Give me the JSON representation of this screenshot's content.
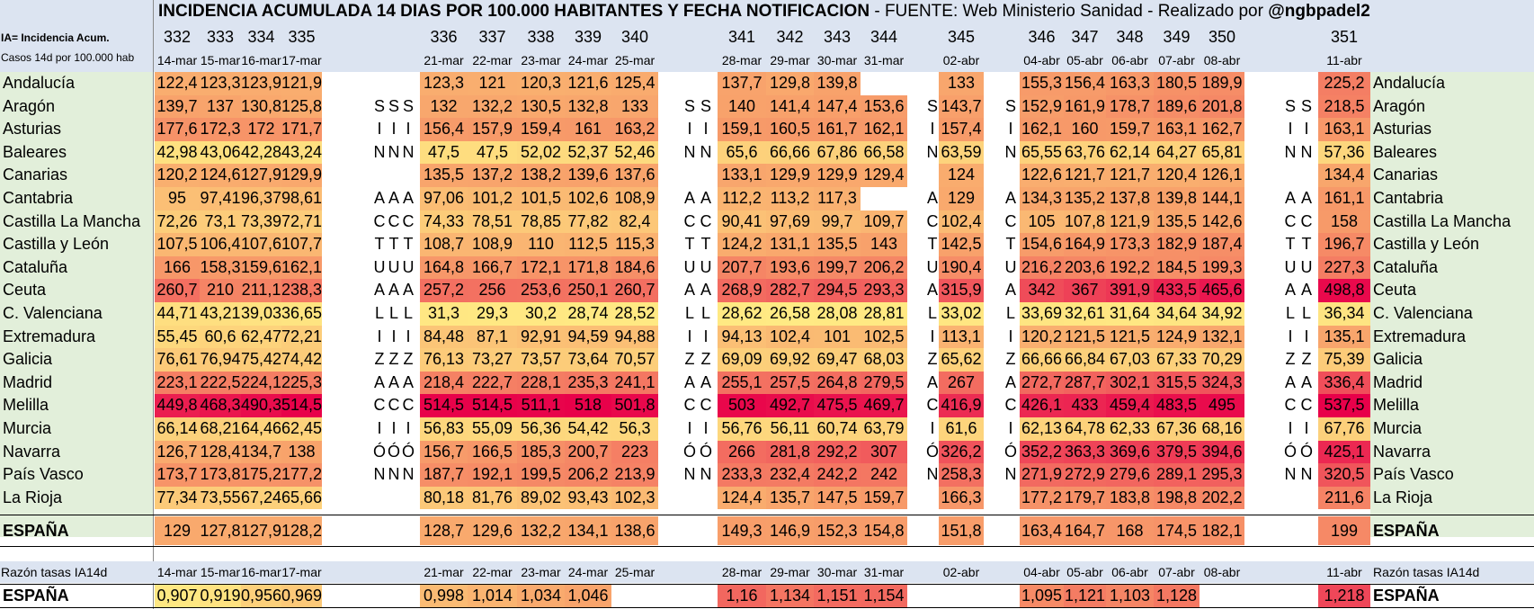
{
  "title": {
    "main": "INCIDENCIA ACUMULADA 14 DIAS POR 100.000 HABITANTES Y FECHA NOTIFICACION",
    "source": " - FUENTE: Web Ministerio Sanidad - Realizado por ",
    "author": "@ngbpadel2"
  },
  "header_labels": {
    "ia_label": "IA= Incidencia Acum.",
    "casos_label": "Casos 14d  por 100.000 hab",
    "ratio_label": "Razón tasas IA14d"
  },
  "colors": {
    "header_bg": "#dce4f1",
    "name_bg": "#e2efda",
    "scale_low": "#ffeb84",
    "scale_mid": "#f8a26b",
    "scale_high": "#e8004a"
  },
  "columns": [
    {
      "num": "332",
      "date": "14-mar"
    },
    {
      "num": "333",
      "date": "15-mar"
    },
    {
      "num": "334",
      "date": "16-mar"
    },
    {
      "num": "335",
      "date": "17-mar"
    },
    {
      "num": "336",
      "date": "21-mar"
    },
    {
      "num": "337",
      "date": "22-mar"
    },
    {
      "num": "338",
      "date": "23-mar"
    },
    {
      "num": "339",
      "date": "24-mar"
    },
    {
      "num": "340",
      "date": "25-mar"
    },
    {
      "num": "341",
      "date": "28-mar"
    },
    {
      "num": "342",
      "date": "29-mar"
    },
    {
      "num": "343",
      "date": "30-mar"
    },
    {
      "num": "344",
      "date": "31-mar"
    },
    {
      "num": "345",
      "date": "02-abr"
    },
    {
      "num": "346",
      "date": "04-abr"
    },
    {
      "num": "347",
      "date": "05-abr"
    },
    {
      "num": "348",
      "date": "06-abr"
    },
    {
      "num": "349",
      "date": "07-abr"
    },
    {
      "num": "350",
      "date": "08-abr"
    },
    {
      "num": "351",
      "date": "11-abr"
    }
  ],
  "rows": [
    {
      "name": "Andalucía",
      "letter": "",
      "values": [
        "122,4",
        "123,3",
        "123,9",
        "121,9",
        "123,3",
        "121",
        "120,3",
        "121,6",
        "125,4",
        "137,7",
        "129,8",
        "139,8",
        "",
        "133",
        "155,3",
        "156,4",
        "163,3",
        "180,5",
        "189,9",
        "225,2"
      ]
    },
    {
      "name": "Aragón",
      "letter": "S",
      "values": [
        "139,7",
        "137",
        "130,8",
        "125,8",
        "132",
        "132,2",
        "130,5",
        "132,8",
        "133",
        "140",
        "141,4",
        "147,4",
        "153,6",
        "143,7",
        "152,9",
        "161,9",
        "178,7",
        "189,6",
        "201,8",
        "218,5"
      ]
    },
    {
      "name": "Asturias",
      "letter": "I",
      "values": [
        "177,6",
        "172,3",
        "172",
        "171,7",
        "156,4",
        "157,9",
        "159,4",
        "161",
        "163,2",
        "159,1",
        "160,5",
        "161,7",
        "162,1",
        "157,4",
        "162,1",
        "160",
        "159,7",
        "163,1",
        "162,7",
        "163,1"
      ]
    },
    {
      "name": "Baleares",
      "letter": "N",
      "values": [
        "42,98",
        "43,06",
        "42,28",
        "43,24",
        "47,5",
        "47,5",
        "52,02",
        "52,37",
        "52,46",
        "65,6",
        "66,66",
        "67,86",
        "66,58",
        "63,59",
        "65,55",
        "63,76",
        "62,14",
        "64,27",
        "65,81",
        "57,36"
      ]
    },
    {
      "name": "Canarias",
      "letter": "",
      "values": [
        "120,2",
        "124,6",
        "127,9",
        "129,9",
        "135,5",
        "137,2",
        "138,2",
        "139,6",
        "137,6",
        "133,1",
        "129,9",
        "129,9",
        "129,4",
        "124",
        "122,6",
        "121,7",
        "121,7",
        "120,4",
        "126,1",
        "134,4"
      ]
    },
    {
      "name": "Cantabria",
      "letter": "A",
      "values": [
        "95",
        "97,41",
        "96,37",
        "98,61",
        "97,06",
        "101,2",
        "101,5",
        "102,6",
        "108,9",
        "112,2",
        "113,2",
        "117,3",
        "",
        "129",
        "134,3",
        "135,2",
        "137,8",
        "139,8",
        "144,1",
        "161,1"
      ]
    },
    {
      "name": "Castilla La Mancha",
      "letter": "C",
      "values": [
        "72,26",
        "73,1",
        "73,39",
        "72,71",
        "74,33",
        "78,51",
        "78,85",
        "77,82",
        "82,4",
        "90,41",
        "97,69",
        "99,7",
        "109,7",
        "102,4",
        "105",
        "107,8",
        "121,9",
        "135,5",
        "142,6",
        "158"
      ]
    },
    {
      "name": "Castilla y León",
      "letter": "T",
      "values": [
        "107,5",
        "106,4",
        "107,6",
        "107,7",
        "108,7",
        "108,9",
        "110",
        "112,5",
        "115,3",
        "124,2",
        "131,1",
        "135,5",
        "143",
        "142,5",
        "154,6",
        "164,9",
        "173,3",
        "182,9",
        "187,4",
        "196,7"
      ]
    },
    {
      "name": "Cataluña",
      "letter": "U",
      "values": [
        "166",
        "158,3",
        "159,6",
        "162,1",
        "164,8",
        "166,7",
        "172,1",
        "171,8",
        "184,6",
        "207,7",
        "193,6",
        "199,7",
        "206,2",
        "190,4",
        "216,2",
        "203,6",
        "192,2",
        "184,5",
        "199,3",
        "227,3"
      ]
    },
    {
      "name": "Ceuta",
      "letter": "A",
      "values": [
        "260,7",
        "210",
        "211,1",
        "238,3",
        "257,2",
        "256",
        "253,6",
        "250,1",
        "260,7",
        "268,9",
        "282,7",
        "294,5",
        "293,3",
        "315,9",
        "342",
        "367",
        "391,9",
        "433,5",
        "465,6",
        "498,8"
      ]
    },
    {
      "name": "C. Valenciana",
      "letter": "L",
      "values": [
        "44,71",
        "43,21",
        "39,03",
        "36,65",
        "31,3",
        "29,3",
        "30,2",
        "28,74",
        "28,52",
        "28,62",
        "26,58",
        "28,08",
        "28,81",
        "33,02",
        "33,69",
        "32,61",
        "31,64",
        "34,64",
        "34,92",
        "36,34"
      ]
    },
    {
      "name": "Extremadura",
      "letter": "I",
      "values": [
        "55,45",
        "60,6",
        "62,47",
        "72,21",
        "84,48",
        "87,1",
        "92,91",
        "94,59",
        "94,88",
        "94,13",
        "102,4",
        "101",
        "102,5",
        "113,1",
        "120,2",
        "121,5",
        "121,5",
        "124,9",
        "132,1",
        "135,1"
      ]
    },
    {
      "name": "Galicia",
      "letter": "Z",
      "values": [
        "76,61",
        "76,94",
        "75,42",
        "74,42",
        "76,13",
        "73,27",
        "73,57",
        "73,64",
        "70,57",
        "69,09",
        "69,92",
        "69,47",
        "68,03",
        "65,62",
        "66,66",
        "66,84",
        "67,03",
        "67,33",
        "70,29",
        "75,39"
      ]
    },
    {
      "name": "Madrid",
      "letter": "A",
      "values": [
        "223,1",
        "222,5",
        "224,1",
        "225,3",
        "218,4",
        "222,7",
        "228,1",
        "235,3",
        "241,1",
        "255,1",
        "257,5",
        "264,8",
        "279,5",
        "267",
        "272,7",
        "287,7",
        "302,1",
        "315,5",
        "324,3",
        "336,4"
      ]
    },
    {
      "name": "Melilla",
      "letter": "C",
      "values": [
        "449,8",
        "468,3",
        "490,3",
        "514,5",
        "514,5",
        "514,5",
        "511,1",
        "518",
        "501,8",
        "503",
        "492,7",
        "475,5",
        "469,7",
        "416,9",
        "426,1",
        "433",
        "459,4",
        "483,5",
        "495",
        "537,5"
      ]
    },
    {
      "name": "Murcia",
      "letter": "I",
      "values": [
        "66,14",
        "68,21",
        "64,46",
        "62,45",
        "56,83",
        "55,09",
        "56,36",
        "54,42",
        "56,3",
        "56,76",
        "56,11",
        "60,74",
        "63,79",
        "61,6",
        "62,13",
        "64,78",
        "62,33",
        "67,36",
        "68,16",
        "67,76"
      ]
    },
    {
      "name": "Navarra",
      "letter": "Ó",
      "values": [
        "126,7",
        "128,4",
        "134,7",
        "138",
        "156,7",
        "166,5",
        "185,3",
        "200,7",
        "223",
        "266",
        "281,8",
        "292,2",
        "307",
        "326,2",
        "352,2",
        "363,3",
        "369,6",
        "379,5",
        "394,6",
        "425,1"
      ]
    },
    {
      "name": "País Vasco",
      "letter": "N",
      "values": [
        "173,7",
        "173,8",
        "175,2",
        "177,2",
        "187,7",
        "192,1",
        "199,5",
        "206,2",
        "213,9",
        "233,3",
        "232,4",
        "242,2",
        "242",
        "258,3",
        "271,9",
        "272,9",
        "279,6",
        "289,1",
        "295,3",
        "320,5"
      ]
    },
    {
      "name": "La Rioja",
      "letter": "",
      "values": [
        "77,34",
        "73,55",
        "67,24",
        "65,66",
        "80,18",
        "81,76",
        "89,02",
        "93,43",
        "102,3",
        "124,4",
        "135,7",
        "147,5",
        "159,7",
        "166,3",
        "177,2",
        "179,7",
        "183,8",
        "198,8",
        "202,2",
        "211,6"
      ]
    }
  ],
  "espana": {
    "name": "ESPAÑA",
    "values": [
      "129",
      "127,8",
      "127,9",
      "128,2",
      "128,7",
      "129,6",
      "132,2",
      "134,1",
      "138,6",
      "149,3",
      "146,9",
      "152,3",
      "154,8",
      "151,8",
      "163,4",
      "164,7",
      "168",
      "174,5",
      "182,1",
      "199"
    ]
  },
  "ratio": {
    "name": "ESPAÑA",
    "values": [
      "0,907",
      "0,919",
      "0,956",
      "0,969",
      "0,998",
      "1,014",
      "1,034",
      "1,046",
      "",
      "1,16",
      "1,134",
      "1,151",
      "1,154",
      "",
      "1,095",
      "1,121",
      "1,103",
      "1,128",
      "",
      "1,218"
    ]
  }
}
